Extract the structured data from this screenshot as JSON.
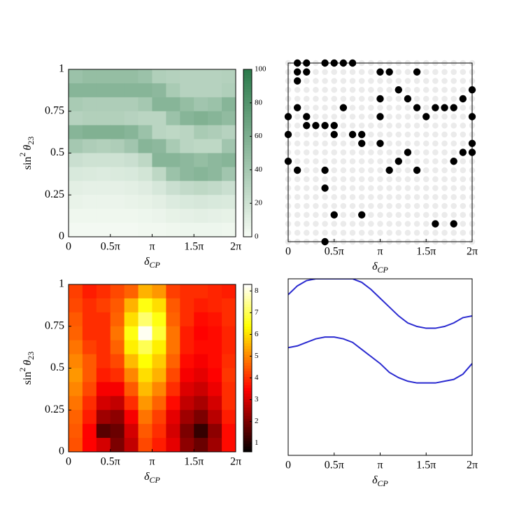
{
  "chart_data": [
    {
      "type": "heatmap",
      "xlabel": [
        "δ",
        "CP"
      ],
      "ylabel": [
        "sin",
        "2",
        "θ",
        "23"
      ],
      "xlim": [
        0,
        2
      ],
      "ylim": [
        0,
        1
      ],
      "xticks": [
        0,
        {
          "value": 0.5,
          "label": "0.5π"
        },
        {
          "value": 1,
          "label": "π"
        },
        {
          "value": 1.5,
          "label": "1.5π"
        },
        {
          "value": 2,
          "label": "2π"
        }
      ],
      "yticks": [
        0,
        0.25,
        0.5,
        0.75,
        1
      ],
      "colormap": [
        "#f7fcf5",
        "#2b7a4b"
      ],
      "zlim": [
        0,
        100
      ],
      "zticks": [
        0,
        20,
        40,
        60,
        80,
        100
      ],
      "values": [
        [
          45,
          48,
          48,
          48,
          48,
          45,
          35,
          33,
          32,
          32,
          32,
          33
        ],
        [
          55,
          55,
          55,
          55,
          55,
          55,
          52,
          38,
          32,
          32,
          32,
          35
        ],
        [
          38,
          36,
          36,
          36,
          36,
          40,
          55,
          55,
          48,
          42,
          45,
          55
        ],
        [
          32,
          34,
          34,
          34,
          32,
          30,
          30,
          45,
          55,
          58,
          55,
          50
        ],
        [
          55,
          58,
          58,
          58,
          55,
          45,
          30,
          28,
          30,
          38,
          36,
          32
        ],
        [
          40,
          36,
          34,
          36,
          42,
          55,
          52,
          38,
          30,
          28,
          28,
          42
        ],
        [
          22,
          20,
          20,
          20,
          22,
          28,
          55,
          55,
          52,
          48,
          52,
          55
        ],
        [
          15,
          14,
          13,
          14,
          15,
          18,
          28,
          45,
          52,
          55,
          52,
          42
        ],
        [
          10,
          9,
          9,
          9,
          10,
          12,
          16,
          22,
          26,
          28,
          26,
          22
        ],
        [
          7,
          6,
          6,
          6,
          7,
          8,
          10,
          13,
          15,
          16,
          15,
          14
        ],
        [
          4,
          4,
          4,
          4,
          4,
          5,
          6,
          8,
          9,
          10,
          9,
          8
        ],
        [
          2,
          2,
          2,
          2,
          2,
          3,
          3,
          4,
          5,
          5,
          5,
          4
        ]
      ]
    },
    {
      "type": "scatter",
      "xlabel": [
        "δ",
        "CP"
      ],
      "xlim": [
        0,
        2
      ],
      "ylim": [
        0,
        1
      ],
      "grid": true,
      "color": "#000000",
      "xticks": [
        0,
        {
          "value": 0.5,
          "label": "0.5π"
        },
        {
          "value": 1,
          "label": "π"
        },
        {
          "value": 1.5,
          "label": "1.5π"
        },
        {
          "value": 2,
          "label": "2π"
        }
      ],
      "x": [
        0.1,
        0.2,
        0.4,
        0.5,
        0.6,
        0.7,
        0.1,
        0.2,
        1.0,
        1.1,
        1.4,
        0.1,
        1.2,
        2.0,
        1.0,
        1.3,
        1.9,
        0.1,
        0.6,
        1.4,
        1.6,
        1.7,
        1.8,
        0,
        0.2,
        1.0,
        1.5,
        2.0,
        0.2,
        0.3,
        0.4,
        0.5,
        0,
        0.5,
        0.7,
        0.8,
        0.8,
        1.0,
        2.0,
        1.3,
        1.9,
        2.0,
        0,
        1.2,
        1.8,
        0.1,
        0.4,
        1.1,
        1.4,
        0.4,
        0.5,
        0.8,
        1.6,
        1.8,
        0.4
      ],
      "y": [
        1,
        1,
        1,
        1,
        1,
        1,
        0.95,
        0.95,
        0.95,
        0.95,
        0.95,
        0.9,
        0.85,
        0.85,
        0.8,
        0.8,
        0.8,
        0.75,
        0.75,
        0.75,
        0.75,
        0.75,
        0.75,
        0.7,
        0.7,
        0.7,
        0.7,
        0.7,
        0.65,
        0.65,
        0.65,
        0.65,
        0.6,
        0.6,
        0.6,
        0.6,
        0.55,
        0.55,
        0.55,
        0.5,
        0.5,
        0.5,
        0.45,
        0.45,
        0.45,
        0.4,
        0.4,
        0.4,
        0.4,
        0.3,
        0.15,
        0.15,
        0.1,
        0.1,
        0
      ]
    },
    {
      "type": "heatmap",
      "xlabel": [
        "δ",
        "CP"
      ],
      "ylabel": [
        "sin",
        "2",
        "θ",
        "23"
      ],
      "xlim": [
        0,
        2
      ],
      "ylim": [
        0,
        1
      ],
      "xticks": [
        0,
        {
          "value": 0.5,
          "label": "0.5π"
        },
        {
          "value": 1,
          "label": "π"
        },
        {
          "value": 1.5,
          "label": "1.5π"
        },
        {
          "value": 2,
          "label": "2π"
        }
      ],
      "yticks": [
        0,
        0.25,
        0.5,
        0.75,
        1
      ],
      "colormap": "hot",
      "zlim": [
        0.6,
        8.3
      ],
      "zticks": [
        1,
        2,
        3,
        4,
        5,
        6,
        7,
        8
      ],
      "values": [
        [
          4.2,
          3.8,
          4.0,
          4.3,
          4.6,
          5.5,
          5.2,
          4.2,
          4.0,
          4.0,
          3.9,
          3.8
        ],
        [
          4.3,
          4.0,
          4.2,
          4.5,
          5.5,
          6.5,
          6.0,
          4.5,
          4.0,
          3.8,
          3.9,
          4.0
        ],
        [
          4.5,
          4.0,
          4.0,
          4.6,
          6.0,
          7.2,
          6.5,
          4.6,
          4.0,
          3.6,
          3.7,
          4.0
        ],
        [
          4.6,
          4.0,
          4.0,
          4.8,
          6.5,
          8.2,
          6.8,
          4.8,
          3.8,
          3.5,
          3.6,
          3.9
        ],
        [
          4.8,
          4.2,
          4.0,
          4.6,
          6.2,
          7.0,
          6.2,
          4.8,
          3.8,
          3.6,
          3.6,
          3.9
        ],
        [
          5.0,
          4.5,
          4.0,
          4.3,
          5.6,
          6.4,
          5.8,
          4.6,
          3.6,
          3.4,
          3.6,
          4.0
        ],
        [
          5.2,
          4.5,
          3.8,
          4.0,
          5.0,
          6.0,
          5.5,
          4.3,
          3.4,
          3.2,
          3.5,
          4.1
        ],
        [
          5.0,
          4.3,
          3.4,
          3.4,
          4.5,
          5.6,
          5.0,
          4.0,
          3.1,
          2.9,
          3.3,
          4.0
        ],
        [
          4.8,
          4.0,
          3.0,
          2.8,
          4.0,
          5.2,
          4.6,
          3.6,
          2.8,
          2.5,
          3.0,
          4.0
        ],
        [
          4.6,
          3.8,
          2.4,
          2.2,
          3.4,
          4.8,
          4.2,
          3.2,
          2.4,
          2.0,
          2.7,
          3.8
        ],
        [
          4.5,
          3.5,
          1.6,
          1.8,
          3.0,
          4.5,
          4.0,
          3.0,
          2.0,
          1.2,
          2.2,
          3.6
        ],
        [
          4.4,
          3.5,
          3.0,
          2.0,
          2.8,
          4.3,
          3.8,
          3.2,
          2.2,
          1.8,
          2.4,
          3.6
        ]
      ]
    },
    {
      "type": "line",
      "xlabel": [
        "δ",
        "CP"
      ],
      "xlim": [
        0,
        2
      ],
      "ylim": [
        0,
        1
      ],
      "xticks": [
        0,
        {
          "value": 0.5,
          "label": "0.5π"
        },
        {
          "value": 1,
          "label": "π"
        },
        {
          "value": 1.5,
          "label": "1.5π"
        },
        {
          "value": 2,
          "label": "2π"
        }
      ],
      "x": [
        0,
        0.1,
        0.2,
        0.3,
        0.4,
        0.5,
        0.6,
        0.7,
        0.8,
        0.9,
        1.0,
        1.1,
        1.2,
        1.3,
        1.4,
        1.5,
        1.6,
        1.7,
        1.8,
        1.9,
        2.0
      ],
      "series": [
        {
          "color": "#2a2ad0",
          "values": [
            0.91,
            0.96,
            0.99,
            1.0,
            1.0,
            1.0,
            1.0,
            1.0,
            0.98,
            0.94,
            0.89,
            0.84,
            0.79,
            0.75,
            0.73,
            0.72,
            0.72,
            0.73,
            0.75,
            0.78,
            0.79
          ]
        },
        {
          "color": "#2a2ad0",
          "values": [
            0.61,
            0.62,
            0.64,
            0.66,
            0.67,
            0.67,
            0.66,
            0.64,
            0.6,
            0.56,
            0.52,
            0.47,
            0.44,
            0.42,
            0.41,
            0.41,
            0.41,
            0.42,
            0.43,
            0.46,
            0.52
          ]
        }
      ]
    }
  ]
}
